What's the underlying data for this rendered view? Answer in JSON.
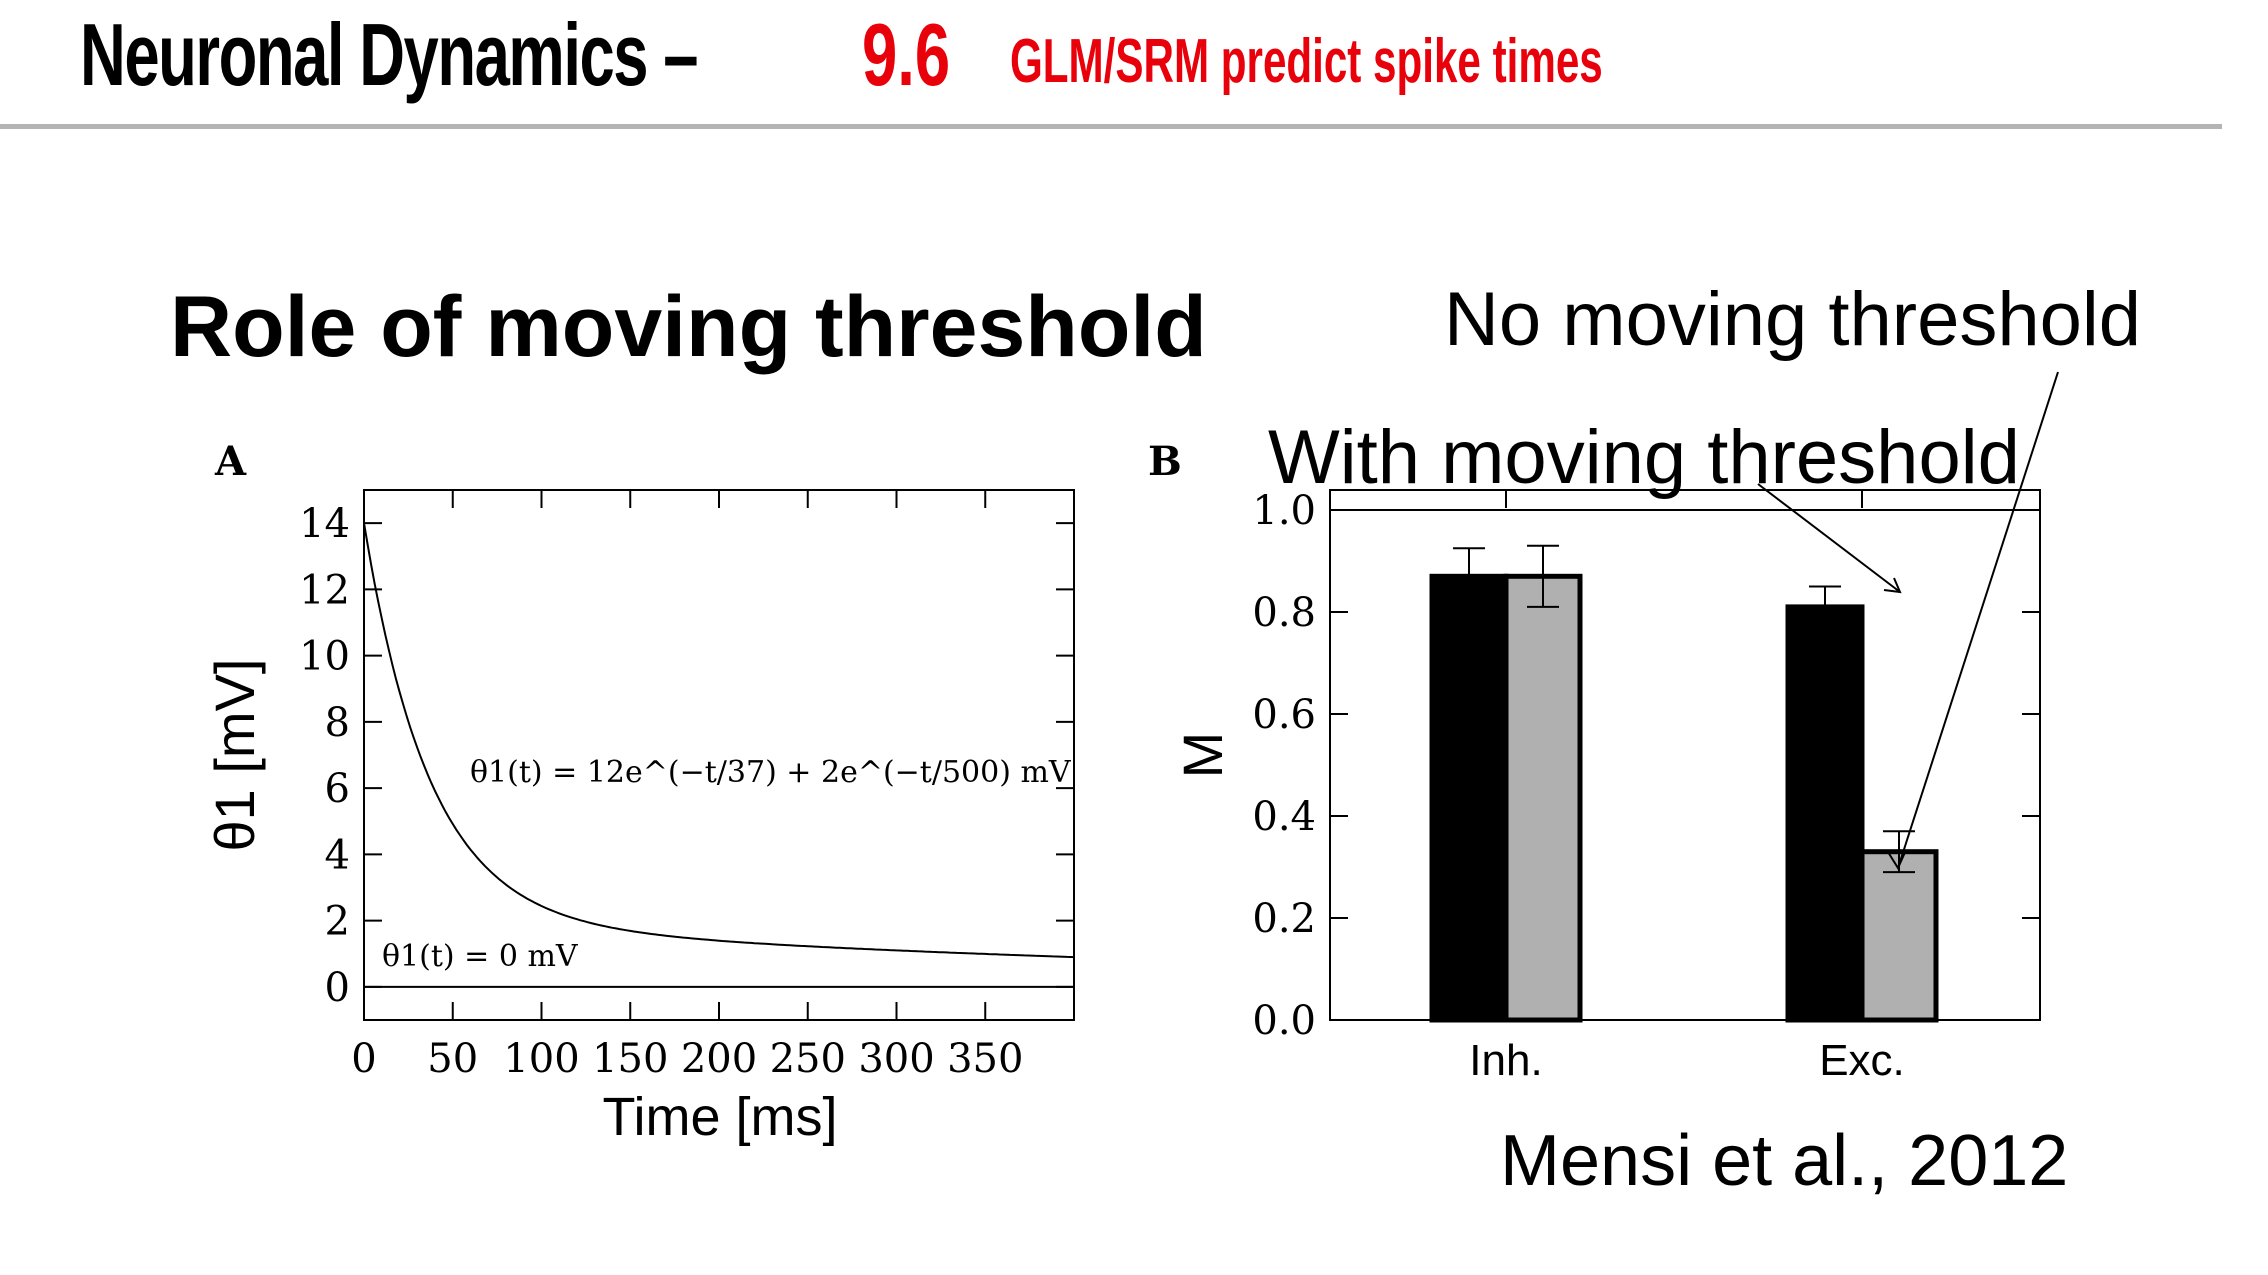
{
  "header": {
    "title_main": "Neuronal Dynamics –",
    "title_num": "9.6",
    "title_sub": "GLM/SRM predict spike times"
  },
  "section_title": "Role of moving threshold",
  "annotations": {
    "no_moving": "No moving threshold",
    "with_moving": "With moving threshold",
    "citation": "Mensi et al., 2012"
  },
  "colors": {
    "title_accent": "#e8000b",
    "rule": "#b4b4b4",
    "bar_with": "#000000",
    "bar_no": "#b0b0b0"
  },
  "chart_data": [
    {
      "type": "line",
      "panel_label": "A",
      "xlabel": "Time [ms]",
      "ylabel": "θ1 [mV]",
      "xlim": [
        0,
        400
      ],
      "ylim": [
        -1,
        15
      ],
      "xticks": [
        0,
        50,
        100,
        150,
        200,
        250,
        300,
        350
      ],
      "yticks": [
        0,
        2,
        4,
        6,
        8,
        10,
        12,
        14
      ],
      "formula": {
        "a1": 12,
        "tau1": 37,
        "a2": 2,
        "tau2": 500
      },
      "annotations": [
        "θ1(t) = 12e^(−t/37) + 2e^(−t/500) mV",
        "θ1(t) = 0 mV"
      ],
      "reference_line_y": 0
    },
    {
      "type": "bar",
      "panel_label": "B",
      "ylabel": "M",
      "ylim": [
        0,
        1.0
      ],
      "yticks": [
        "0.0",
        "0.2",
        "0.4",
        "0.6",
        "0.8",
        "1.0"
      ],
      "categories": [
        "Inh.",
        "Exc."
      ],
      "series": [
        {
          "values": [
            0.87,
            0.81
          ],
          "errors": [
            0.055,
            0.04
          ]
        },
        {
          "values": [
            0.87,
            0.33
          ],
          "errors": [
            0.06,
            0.04
          ]
        }
      ],
      "reference_line_y": 1.0
    }
  ]
}
